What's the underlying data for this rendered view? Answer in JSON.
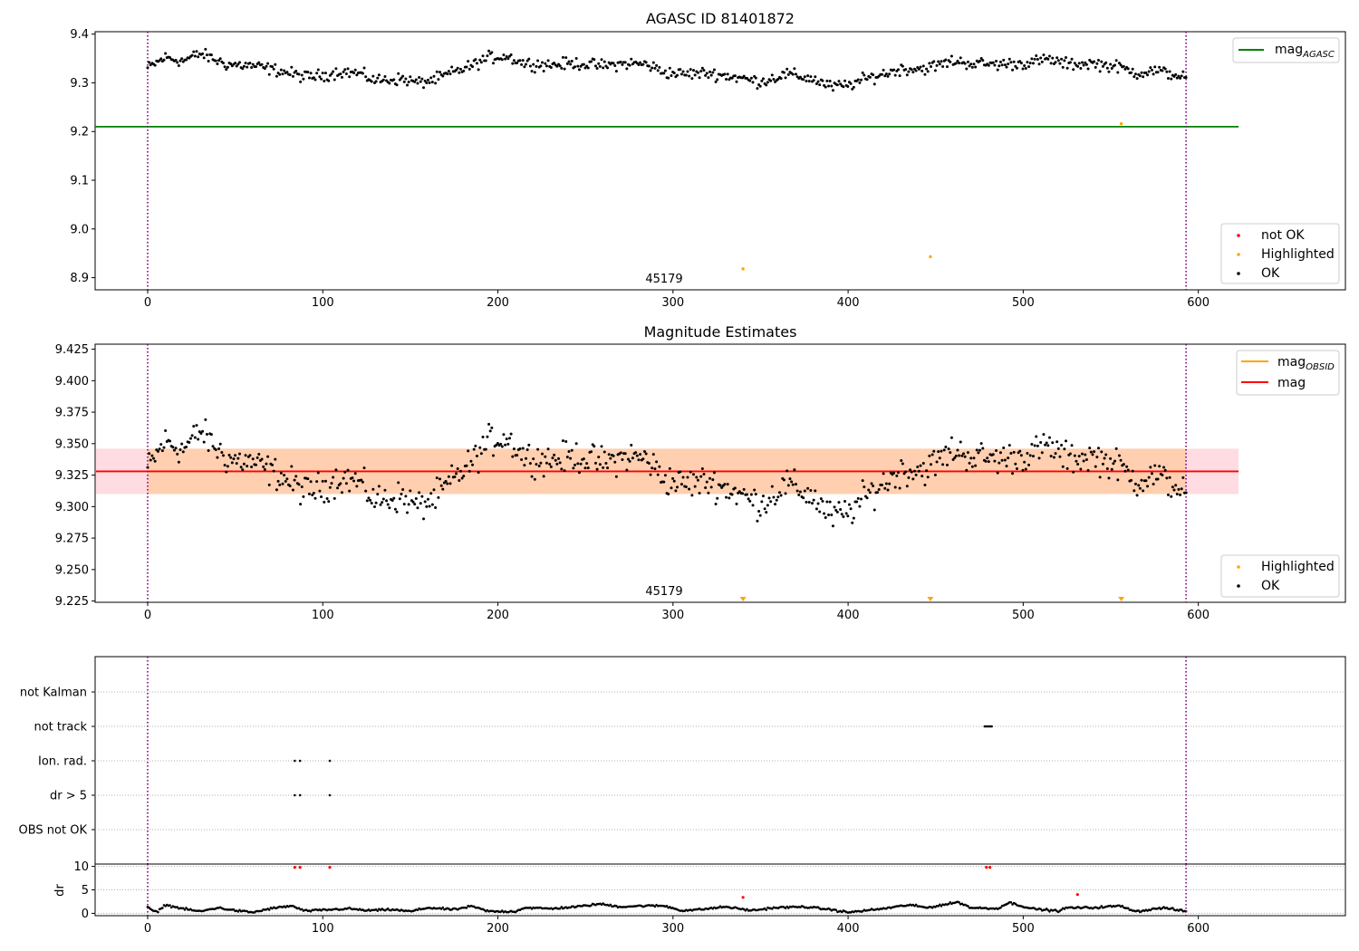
{
  "chart_data": [
    {
      "type": "scatter",
      "title": "AGASC ID 81401872",
      "xlim": [
        -30,
        684
      ],
      "ylim": [
        8.875,
        9.405
      ],
      "xticks": [
        "0",
        "100",
        "200",
        "300",
        "400",
        "500",
        "600"
      ],
      "yticks": [
        "8.9",
        "9.0",
        "9.1",
        "9.2",
        "9.3",
        "9.4"
      ],
      "obsid_label": "45179",
      "obs_bounds": [
        0,
        593
      ],
      "mag_agasc": 9.21,
      "mag_agasc_range": [
        -30,
        623
      ],
      "highlighted": [
        {
          "x": 340,
          "y": 8.918
        },
        {
          "x": 447,
          "y": 8.943
        },
        {
          "x": 556,
          "y": 9.216
        }
      ],
      "series_trend": [
        [
          0,
          9.33
        ],
        [
          10,
          9.352
        ],
        [
          20,
          9.345
        ],
        [
          30,
          9.36
        ],
        [
          45,
          9.338
        ],
        [
          60,
          9.335
        ],
        [
          75,
          9.325
        ],
        [
          90,
          9.312
        ],
        [
          100,
          9.315
        ],
        [
          110,
          9.323
        ],
        [
          120,
          9.32
        ],
        [
          130,
          9.305
        ],
        [
          145,
          9.308
        ],
        [
          155,
          9.3
        ],
        [
          165,
          9.308
        ],
        [
          175,
          9.322
        ],
        [
          185,
          9.335
        ],
        [
          195,
          9.352
        ],
        [
          205,
          9.355
        ],
        [
          215,
          9.34
        ],
        [
          230,
          9.337
        ],
        [
          245,
          9.34
        ],
        [
          260,
          9.335
        ],
        [
          275,
          9.34
        ],
        [
          285,
          9.338
        ],
        [
          295,
          9.322
        ],
        [
          305,
          9.318
        ],
        [
          320,
          9.32
        ],
        [
          335,
          9.312
        ],
        [
          350,
          9.302
        ],
        [
          365,
          9.318
        ],
        [
          380,
          9.308
        ],
        [
          390,
          9.292
        ],
        [
          400,
          9.295
        ],
        [
          410,
          9.308
        ],
        [
          420,
          9.318
        ],
        [
          430,
          9.328
        ],
        [
          445,
          9.33
        ],
        [
          460,
          9.345
        ],
        [
          470,
          9.34
        ],
        [
          485,
          9.338
        ],
        [
          500,
          9.34
        ],
        [
          515,
          9.348
        ],
        [
          525,
          9.338
        ],
        [
          540,
          9.34
        ],
        [
          555,
          9.332
        ],
        [
          565,
          9.32
        ],
        [
          575,
          9.325
        ],
        [
          585,
          9.318
        ],
        [
          593,
          9.312
        ]
      ],
      "legend_upper": [
        {
          "label": "mag",
          "subscript": "AGASC",
          "color": "#008000"
        }
      ],
      "legend_lower": [
        {
          "label": "not OK",
          "color": "#ff0000"
        },
        {
          "label": "Highlighted",
          "color": "#ffa500"
        },
        {
          "label": "OK",
          "color": "#000000"
        }
      ]
    },
    {
      "type": "scatter",
      "title": "Magnitude Estimates",
      "xlim": [
        -30,
        684
      ],
      "ylim": [
        9.224,
        9.429
      ],
      "xticks": [
        "0",
        "100",
        "200",
        "300",
        "400",
        "500",
        "600"
      ],
      "yticks": [
        "9.225",
        "9.250",
        "9.275",
        "9.300",
        "9.325",
        "9.350",
        "9.375",
        "9.400",
        "9.425"
      ],
      "obsid_label": "45179",
      "obs_bounds": [
        0,
        593
      ],
      "mag": 9.328,
      "mag_band": [
        9.31,
        9.346
      ],
      "highlighted_markers_x": [
        340,
        447,
        556
      ],
      "legend_upper": [
        {
          "label": "mag",
          "subscript": "OBSID",
          "color": "#ffa500"
        },
        {
          "label": "mag",
          "subscript": "",
          "color": "#ff0000"
        }
      ],
      "legend_lower": [
        {
          "label": "Highlighted",
          "color": "#ffa500"
        },
        {
          "label": "OK",
          "color": "#000000"
        }
      ]
    },
    {
      "type": "scatter",
      "title": "",
      "xlim": [
        -30,
        684
      ],
      "categories": [
        "not Kalman",
        "not track",
        "Ion. rad.",
        "dr > 5",
        "OBS not OK"
      ],
      "flags": {
        "not track": [
          478,
          479,
          480,
          481,
          482
        ],
        "Ion. rad.": [
          84,
          87,
          104
        ],
        "dr > 5": [
          84,
          87,
          104
        ]
      },
      "obs_bounds": [
        0,
        593
      ]
    },
    {
      "type": "scatter",
      "title": "",
      "ylabel": "dr",
      "xlim": [
        -30,
        684
      ],
      "ylim": [
        -0.5,
        10.5
      ],
      "xticks": [
        "0",
        "100",
        "200",
        "300",
        "400",
        "500",
        "600"
      ],
      "yticks": [
        "0",
        "5",
        "10"
      ],
      "dr_trend": [
        [
          0,
          1.2
        ],
        [
          5,
          0.2
        ],
        [
          10,
          1.8
        ],
        [
          20,
          1.0
        ],
        [
          30,
          0.4
        ],
        [
          40,
          1.2
        ],
        [
          50,
          0.6
        ],
        [
          60,
          0.2
        ],
        [
          70,
          1.0
        ],
        [
          82,
          1.6
        ],
        [
          90,
          0.5
        ],
        [
          105,
          0.8
        ],
        [
          115,
          1.0
        ],
        [
          125,
          0.6
        ],
        [
          140,
          0.8
        ],
        [
          150,
          0.4
        ],
        [
          160,
          1.2
        ],
        [
          175,
          0.8
        ],
        [
          185,
          1.5
        ],
        [
          195,
          0.4
        ],
        [
          210,
          0.4
        ],
        [
          215,
          1.2
        ],
        [
          230,
          1.0
        ],
        [
          245,
          1.4
        ],
        [
          258,
          2.0
        ],
        [
          270,
          1.4
        ],
        [
          283,
          1.6
        ],
        [
          295,
          1.6
        ],
        [
          305,
          0.6
        ],
        [
          315,
          0.8
        ],
        [
          330,
          1.4
        ],
        [
          345,
          0.6
        ],
        [
          358,
          1.2
        ],
        [
          375,
          1.4
        ],
        [
          390,
          0.8
        ],
        [
          400,
          0.2
        ],
        [
          420,
          1.0
        ],
        [
          435,
          1.8
        ],
        [
          445,
          1.2
        ],
        [
          463,
          2.4
        ],
        [
          470,
          1.2
        ],
        [
          485,
          1.0
        ],
        [
          492,
          2.3
        ],
        [
          505,
          1.0
        ],
        [
          520,
          0.5
        ],
        [
          525,
          1.2
        ],
        [
          540,
          1.2
        ],
        [
          555,
          1.6
        ],
        [
          565,
          0.4
        ],
        [
          580,
          1.2
        ],
        [
          593,
          0.4
        ]
      ],
      "red_points": [
        {
          "x": 84,
          "y": 9.8
        },
        {
          "x": 87,
          "y": 9.8
        },
        {
          "x": 104,
          "y": 9.8
        },
        {
          "x": 479,
          "y": 9.8
        },
        {
          "x": 481,
          "y": 9.8
        },
        {
          "x": 340,
          "y": 3.4
        },
        {
          "x": 531,
          "y": 4.0
        }
      ],
      "obs_bounds": [
        0,
        593
      ]
    }
  ]
}
